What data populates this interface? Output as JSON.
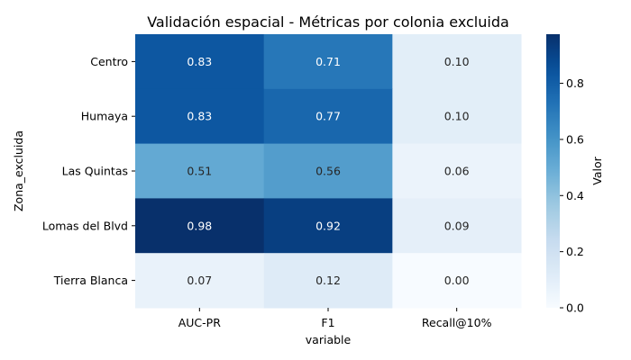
{
  "chart_data": {
    "type": "heatmap",
    "title": "Validación espacial - Métricas por colonia excluida",
    "xlabel": "variable",
    "ylabel": "Zona_excluida",
    "colorbar_label": "Valor",
    "colormap": "Blues",
    "vmin": 0.0,
    "vmax": 0.975,
    "colorbar_ticks": [
      "0.0",
      "0.2",
      "0.4",
      "0.6",
      "0.8"
    ],
    "colorbar_tick_values": [
      0.0,
      0.2,
      0.4,
      0.6,
      0.8
    ],
    "columns": [
      "AUC-PR",
      "F1",
      "Recall@10%"
    ],
    "rows": [
      "Centro",
      "Humaya",
      "Las Quintas",
      "Lomas del Blvd",
      "Tierra Blanca"
    ],
    "values": [
      [
        0.83,
        0.71,
        0.1
      ],
      [
        0.83,
        0.77,
        0.1
      ],
      [
        0.51,
        0.56,
        0.06
      ],
      [
        0.98,
        0.92,
        0.09
      ],
      [
        0.07,
        0.12,
        0.0
      ]
    ],
    "labels": [
      [
        "0.83",
        "0.71",
        "0.10"
      ],
      [
        "0.83",
        "0.77",
        "0.10"
      ],
      [
        "0.51",
        "0.56",
        "0.06"
      ],
      [
        "0.98",
        "0.92",
        "0.09"
      ],
      [
        "0.07",
        "0.12",
        "0.00"
      ]
    ]
  }
}
